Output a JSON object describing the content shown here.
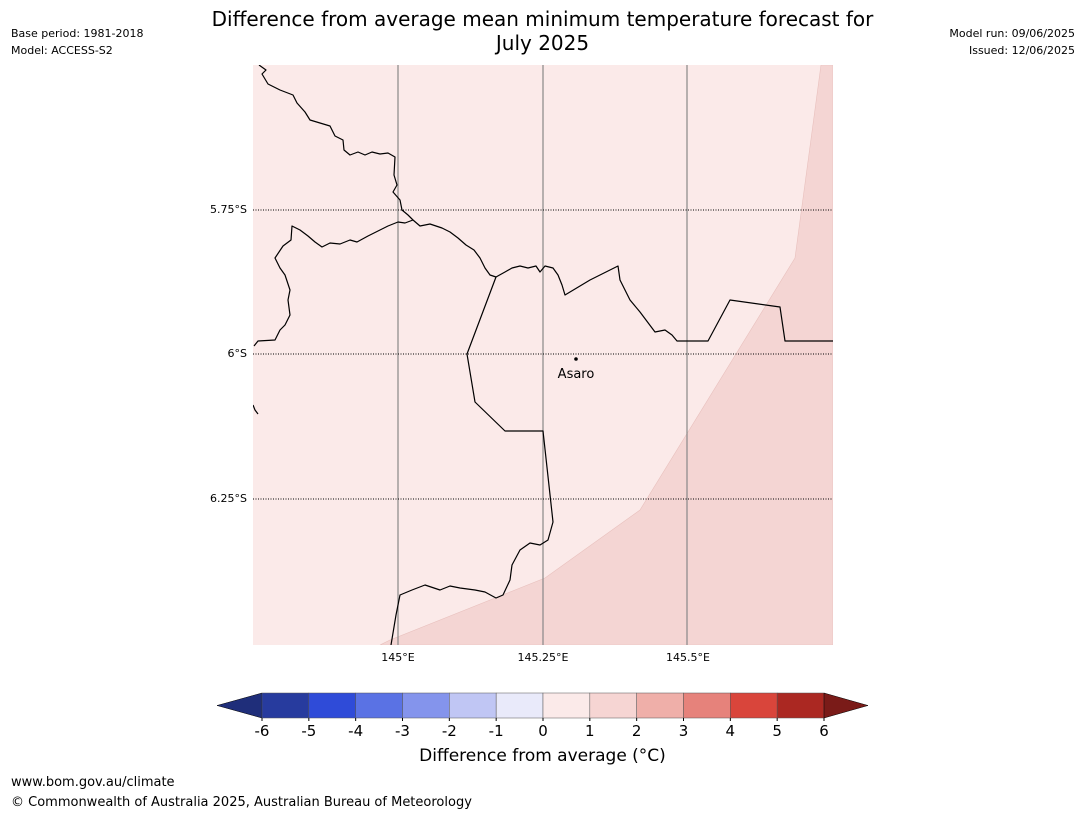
{
  "header": {
    "base_period": "Base period: 1981-2018",
    "model": "Model: ACCESS-S2",
    "model_run": "Model run: 09/06/2025",
    "issued": "Issued: 12/06/2025",
    "title_line1": "Difference from average mean minimum temperature forecast for",
    "title_line2": "July 2025"
  },
  "map": {
    "lat_labels": [
      "5.75°S",
      "6°S",
      "6.25°S"
    ],
    "lon_labels": [
      "145°E",
      "145.25°E",
      "145.5°E"
    ],
    "place": "Asaro",
    "fill_colors": {
      "band_0_1": "#fbeae9",
      "band_1_2": "#f4d5d3"
    }
  },
  "colorbar": {
    "ticks": [
      "-6",
      "-5",
      "-4",
      "-3",
      "-2",
      "-1",
      "0",
      "1",
      "2",
      "3",
      "4",
      "5",
      "6"
    ],
    "colors": [
      "#273b9e",
      "#2f4bd8",
      "#5a72e4",
      "#8494ec",
      "#c0c6f4",
      "#e9eafa",
      "#fbeae9",
      "#f6d5d3",
      "#efafa9",
      "#e6827b",
      "#d9453b",
      "#ab2822"
    ],
    "under_color": "#1f2e7a",
    "over_color": "#7a1b18",
    "label": "Difference from average (°C)"
  },
  "footer": {
    "url": "www.bom.gov.au/climate",
    "copyright": "© Commonwealth of Australia 2025, Australian Bureau of Meteorology"
  }
}
